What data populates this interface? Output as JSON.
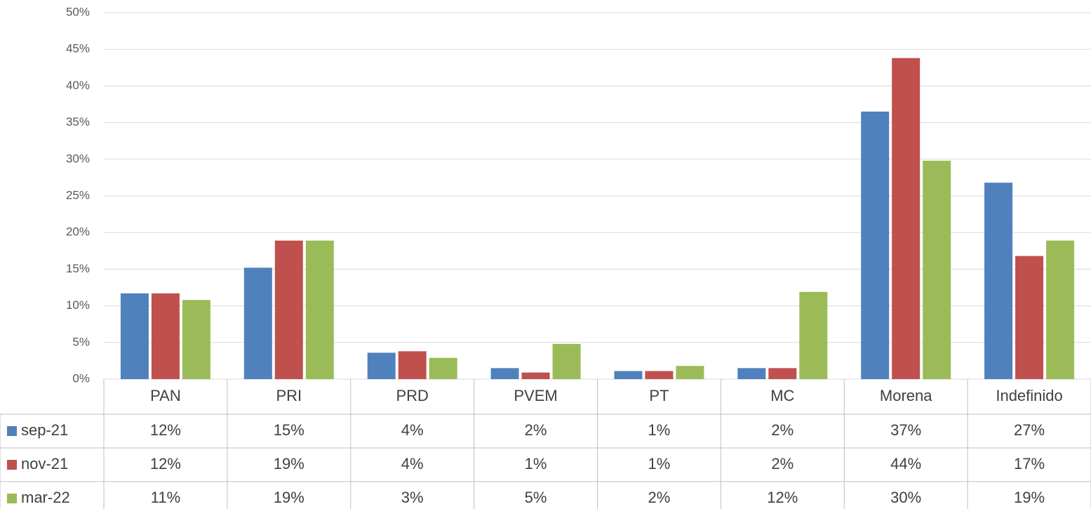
{
  "chart_data": {
    "type": "bar",
    "categories": [
      "PAN",
      "PRI",
      "PRD",
      "PVEM",
      "PT",
      "MC",
      "Morena",
      "Indefinido"
    ],
    "series": [
      {
        "name": "sep-21",
        "color": "#4f81bd",
        "values": [
          11.7,
          15.2,
          3.6,
          1.5,
          1.1,
          1.5,
          36.5,
          26.8
        ],
        "value_labels": [
          "12%",
          "15%",
          "4%",
          "2%",
          "1%",
          "2%",
          "37%",
          "27%"
        ]
      },
      {
        "name": "nov-21",
        "color": "#c0504d",
        "values": [
          11.7,
          18.9,
          3.8,
          0.9,
          1.1,
          1.5,
          43.8,
          16.8
        ],
        "value_labels": [
          "12%",
          "19%",
          "4%",
          "1%",
          "1%",
          "2%",
          "44%",
          "17%"
        ]
      },
      {
        "name": "mar-22",
        "color": "#9bbb59",
        "values": [
          10.8,
          18.9,
          2.9,
          4.8,
          1.8,
          11.9,
          29.8,
          18.9
        ],
        "value_labels": [
          "11%",
          "19%",
          "3%",
          "5%",
          "2%",
          "12%",
          "30%",
          "19%"
        ]
      }
    ],
    "ylim": [
      0,
      50
    ],
    "yticks": [
      {
        "value": 0,
        "label": "0%"
      },
      {
        "value": 5,
        "label": "5%"
      },
      {
        "value": 10,
        "label": "10%"
      },
      {
        "value": 15,
        "label": "15%"
      },
      {
        "value": 20,
        "label": "20%"
      },
      {
        "value": 25,
        "label": "25%"
      },
      {
        "value": 30,
        "label": "30%"
      },
      {
        "value": 35,
        "label": "35%"
      },
      {
        "value": 40,
        "label": "40%"
      },
      {
        "value": 45,
        "label": "45%"
      },
      {
        "value": 50,
        "label": "50%"
      }
    ],
    "grid": true,
    "data_table": true
  }
}
